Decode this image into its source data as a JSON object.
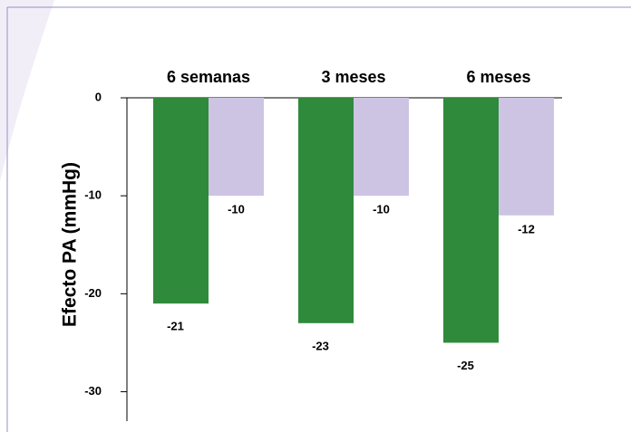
{
  "chart_data": {
    "type": "bar",
    "categories": [
      "6 semanas",
      "3 meses",
      "6 meses"
    ],
    "y_label": "Efecto PA  (mmHg)",
    "series": [
      {
        "color": "#2f8a3b",
        "values": [
          -21,
          -23,
          -25
        ]
      },
      {
        "color": "#cdc4e4",
        "values": [
          -10,
          -10,
          -12
        ]
      }
    ],
    "ylim": [
      -33,
      0
    ],
    "yticks": [
      0,
      -10,
      -20,
      -30
    ]
  }
}
